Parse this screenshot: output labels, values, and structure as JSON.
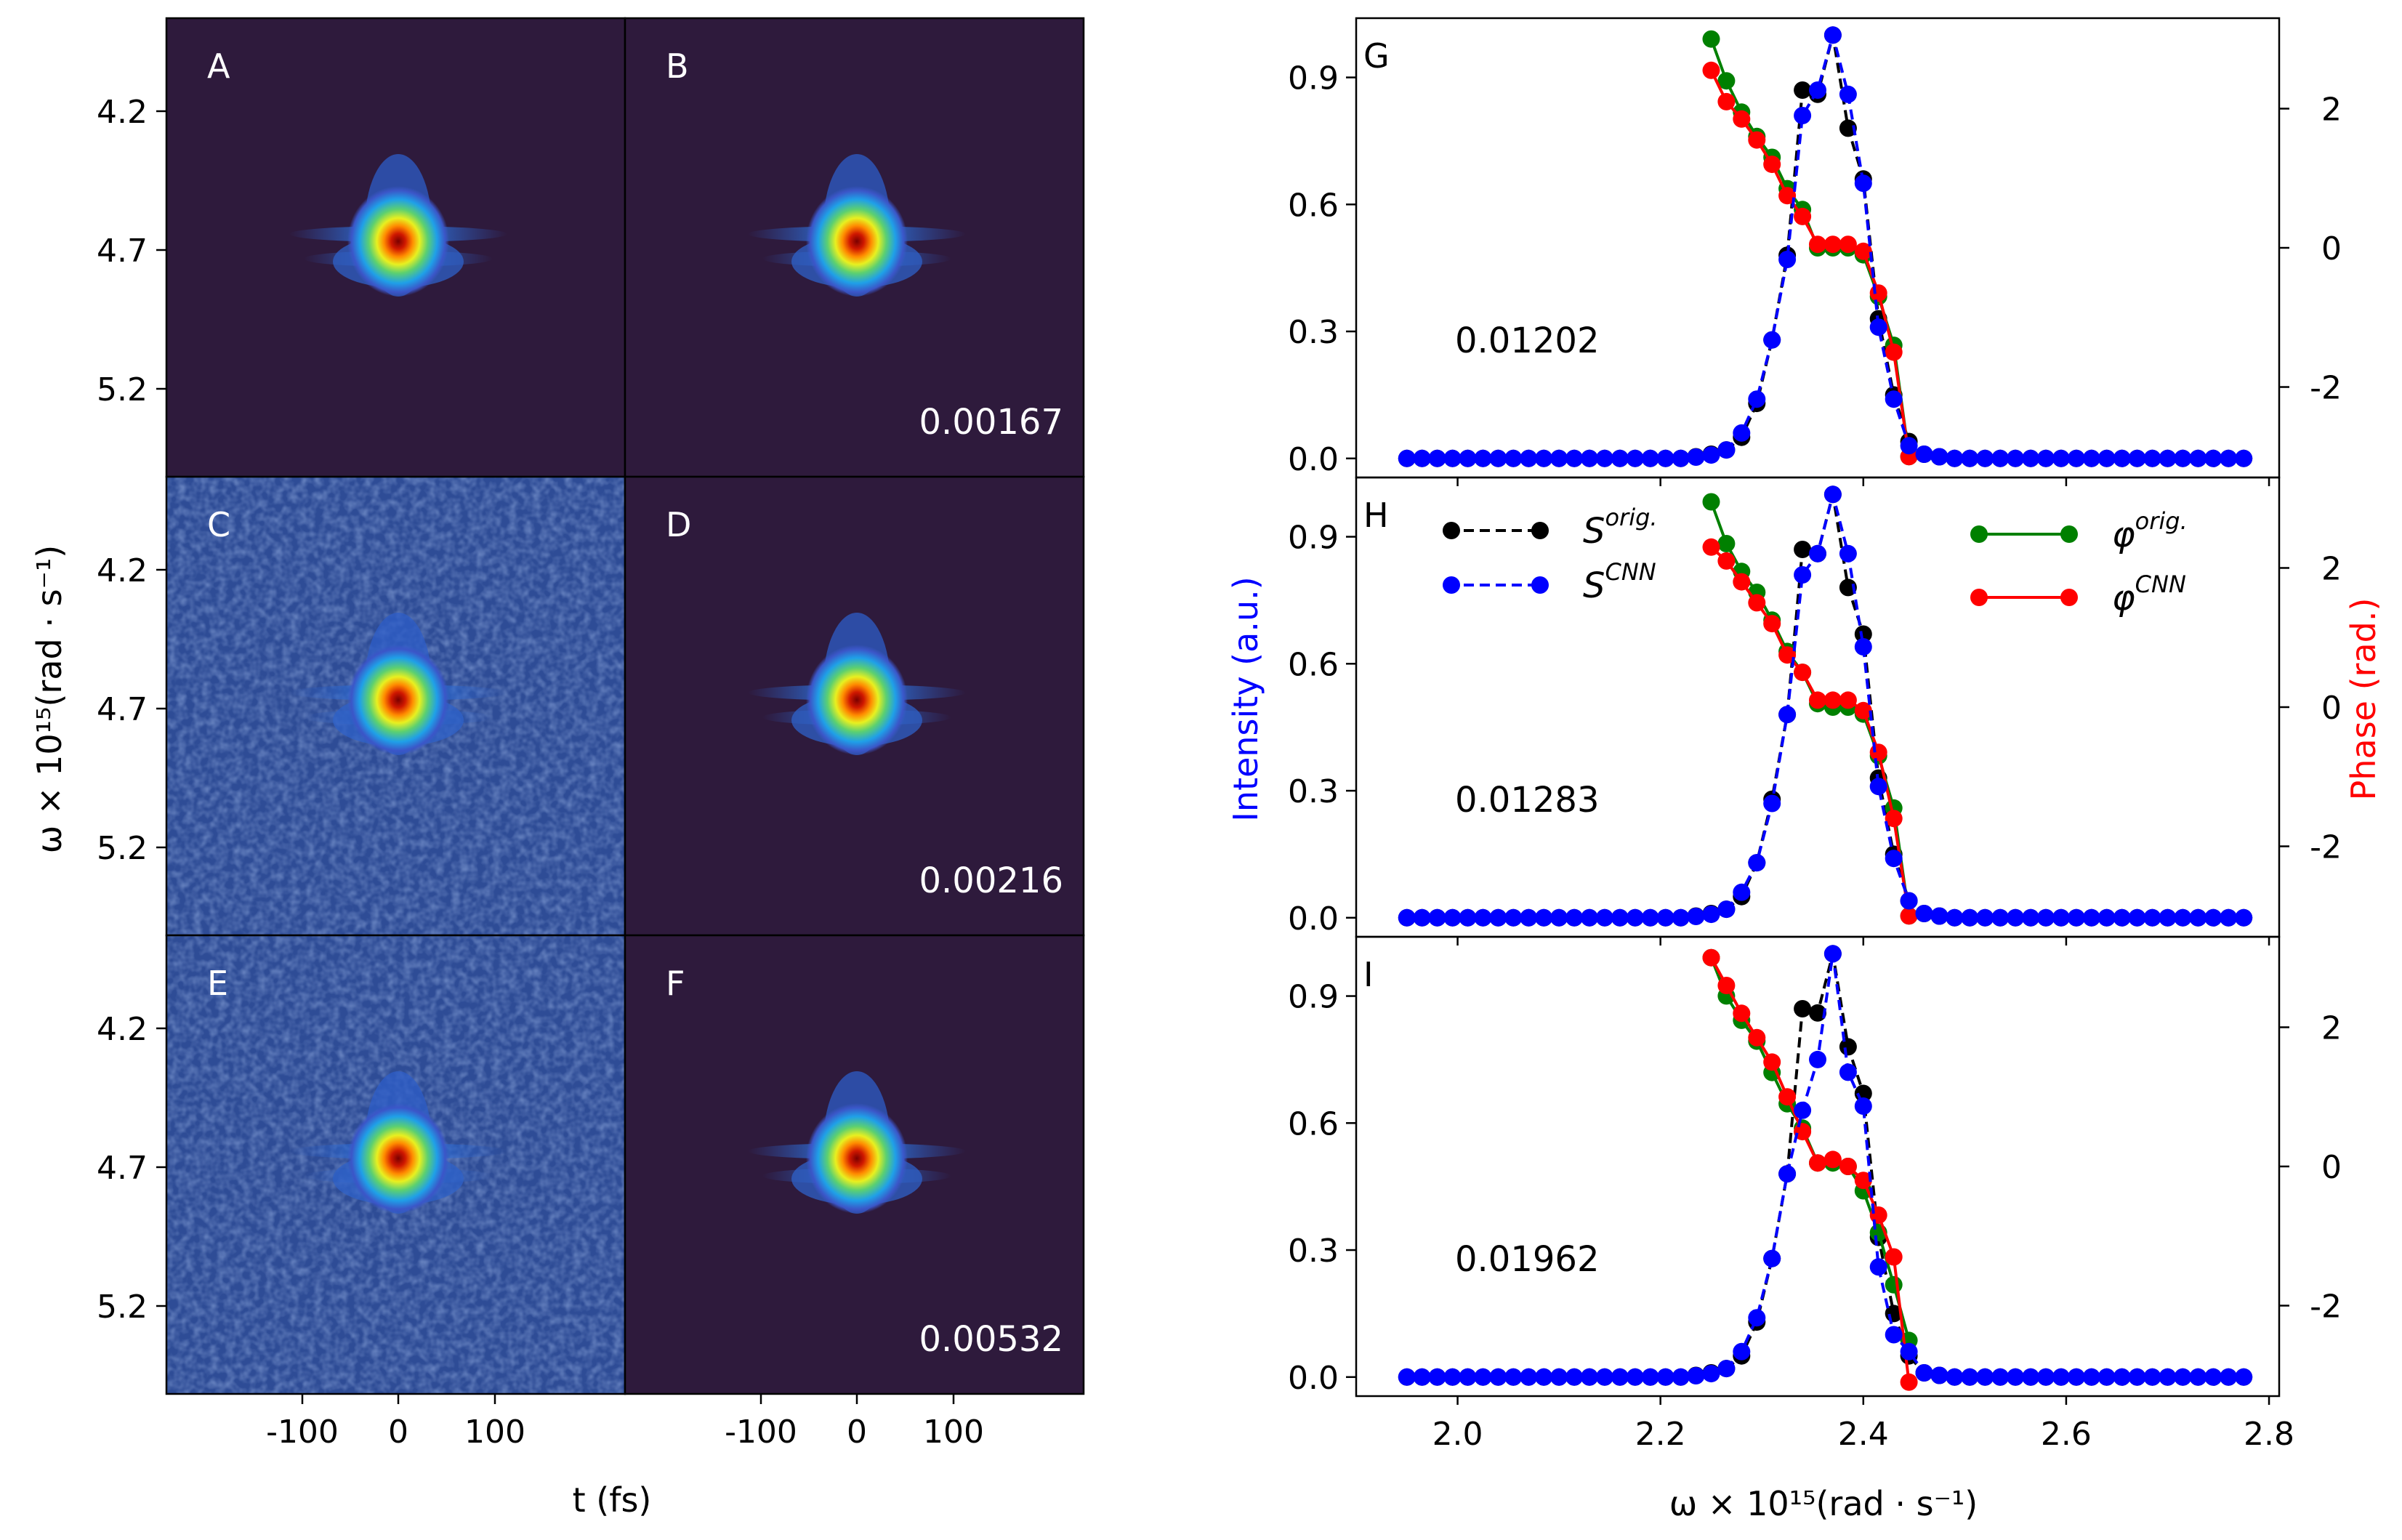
{
  "colors": {
    "intensity_axis": "#0000ff",
    "phase_axis": "#ff0000",
    "s_orig": "#000000",
    "s_cnn": "#0000ff",
    "phi_orig": "#008000",
    "phi_cnn": "#ff0000",
    "heatmap_bg_clean": "#2e1a3c",
    "heatmap_bg_noisy": "#2e4c96"
  },
  "chart_data": [
    {
      "type": "heatmap",
      "panels": [
        {
          "label": "A",
          "noisy": false,
          "value": ""
        },
        {
          "label": "B",
          "noisy": false,
          "value": "0.00167"
        },
        {
          "label": "C",
          "noisy": true,
          "value": ""
        },
        {
          "label": "D",
          "noisy": false,
          "value": "0.00216"
        },
        {
          "label": "E",
          "noisy": true,
          "value": ""
        },
        {
          "label": "F",
          "noisy": false,
          "value": "0.00532"
        }
      ],
      "ylabel": "ω × 10¹⁵(rad · s⁻¹)",
      "xlabel": "t (fs)",
      "yticks": [
        "4.2",
        "4.7",
        "5.2"
      ],
      "xticks": [
        "-100",
        "0",
        "100"
      ]
    },
    {
      "type": "line",
      "x": [
        1.95,
        1.965,
        1.98,
        1.995,
        2.01,
        2.025,
        2.04,
        2.055,
        2.07,
        2.085,
        2.1,
        2.115,
        2.13,
        2.145,
        2.16,
        2.175,
        2.19,
        2.205,
        2.22,
        2.235,
        2.25,
        2.265,
        2.28,
        2.295,
        2.31,
        2.325,
        2.34,
        2.355,
        2.37,
        2.385,
        2.4,
        2.415,
        2.43,
        2.445,
        2.46,
        2.475,
        2.49,
        2.505,
        2.52,
        2.535,
        2.55,
        2.565,
        2.58,
        2.595,
        2.61,
        2.625,
        2.64,
        2.655,
        2.67,
        2.685,
        2.7,
        2.715,
        2.73,
        2.745,
        2.76,
        2.775
      ],
      "phase_x": [
        2.25,
        2.265,
        2.28,
        2.295,
        2.31,
        2.325,
        2.34,
        2.355,
        2.37,
        2.385,
        2.4,
        2.415,
        2.43,
        2.445
      ],
      "panels": [
        {
          "label": "G",
          "value": "0.01202",
          "s_orig": [
            0,
            0,
            0,
            0,
            0,
            0,
            0,
            0,
            0,
            0,
            0,
            0,
            0,
            0,
            0,
            0,
            0,
            0,
            0,
            0.004,
            0.01,
            0.02,
            0.05,
            0.13,
            0.28,
            0.48,
            0.87,
            0.86,
            1.0,
            0.78,
            0.66,
            0.33,
            0.15,
            0.04,
            0.01,
            0.004,
            0,
            0,
            0,
            0,
            0,
            0,
            0,
            0,
            0,
            0,
            0,
            0,
            0,
            0,
            0,
            0,
            0,
            0,
            0,
            0
          ],
          "s_cnn": [
            0,
            0,
            0,
            0,
            0,
            0,
            0,
            0,
            0,
            0,
            0,
            0,
            0,
            0,
            0,
            0,
            0,
            0,
            0,
            0.003,
            0.008,
            0.02,
            0.06,
            0.14,
            0.28,
            0.47,
            0.81,
            0.87,
            1.0,
            0.86,
            0.65,
            0.31,
            0.14,
            0.03,
            0.01,
            0.004,
            0,
            0,
            0,
            0,
            0,
            0,
            0,
            0,
            0,
            0,
            0,
            0,
            0,
            0,
            0,
            0,
            0,
            0,
            0,
            0
          ],
          "phi_orig": [
            3.0,
            2.4,
            1.95,
            1.6,
            1.3,
            0.85,
            0.55,
            0.0,
            0.0,
            0.0,
            -0.1,
            -0.7,
            -1.4,
            -3.0
          ],
          "phi_cnn": [
            2.55,
            2.1,
            1.85,
            1.55,
            1.2,
            0.75,
            0.45,
            0.05,
            0.05,
            0.05,
            -0.05,
            -0.65,
            -1.5,
            -3.0
          ]
        },
        {
          "label": "H",
          "value": "0.01283",
          "s_orig": [
            0,
            0,
            0,
            0,
            0,
            0,
            0,
            0,
            0,
            0,
            0,
            0,
            0,
            0,
            0,
            0,
            0,
            0,
            0,
            0.004,
            0.01,
            0.02,
            0.05,
            0.13,
            0.28,
            0.48,
            0.87,
            0.86,
            1.0,
            0.78,
            0.67,
            0.33,
            0.15,
            0.04,
            0.01,
            0.004,
            0,
            0,
            0,
            0,
            0,
            0,
            0,
            0,
            0,
            0,
            0,
            0,
            0,
            0,
            0,
            0,
            0,
            0,
            0,
            0
          ],
          "s_cnn": [
            0,
            0,
            0,
            0,
            0,
            0,
            0,
            0,
            0,
            0,
            0,
            0,
            0,
            0,
            0,
            0,
            0,
            0,
            0,
            0.003,
            0.008,
            0.02,
            0.06,
            0.13,
            0.27,
            0.48,
            0.81,
            0.86,
            1.0,
            0.86,
            0.64,
            0.31,
            0.14,
            0.04,
            0.01,
            0.004,
            0,
            0,
            0,
            0,
            0,
            0,
            0,
            0,
            0,
            0,
            0,
            0,
            0,
            0,
            0,
            0,
            0,
            0,
            0,
            0
          ],
          "phi_orig": [
            2.95,
            2.35,
            1.95,
            1.65,
            1.25,
            0.8,
            0.5,
            0.05,
            0.0,
            0.0,
            -0.1,
            -0.7,
            -1.45,
            -3.0
          ],
          "phi_cnn": [
            2.3,
            2.1,
            1.8,
            1.5,
            1.2,
            0.75,
            0.5,
            0.1,
            0.1,
            0.1,
            -0.05,
            -0.65,
            -1.6,
            -3.0
          ]
        },
        {
          "label": "I",
          "value": "0.01962",
          "s_orig": [
            0,
            0,
            0,
            0,
            0,
            0,
            0,
            0,
            0,
            0,
            0,
            0,
            0,
            0,
            0,
            0,
            0,
            0,
            0,
            0.004,
            0.01,
            0.02,
            0.05,
            0.13,
            0.28,
            0.48,
            0.87,
            0.86,
            1.0,
            0.78,
            0.67,
            0.33,
            0.15,
            0.05,
            0.01,
            0.004,
            0,
            0,
            0,
            0,
            0,
            0,
            0,
            0,
            0,
            0,
            0,
            0,
            0,
            0,
            0,
            0,
            0,
            0,
            0,
            0
          ],
          "s_cnn": [
            0,
            0,
            0,
            0,
            0,
            0,
            0,
            0,
            0,
            0,
            0,
            0,
            0,
            0,
            0,
            0,
            0,
            0,
            0,
            0.003,
            0.008,
            0.02,
            0.06,
            0.14,
            0.28,
            0.48,
            0.63,
            0.75,
            1.0,
            0.72,
            0.64,
            0.26,
            0.1,
            0.06,
            0.01,
            0.004,
            0,
            0,
            0,
            0,
            0,
            0,
            0,
            0,
            0,
            0,
            0,
            0,
            0,
            0,
            0,
            0,
            0,
            0,
            0,
            0
          ],
          "phi_orig": [
            3.0,
            2.45,
            2.1,
            1.8,
            1.35,
            0.9,
            0.55,
            0.05,
            0.05,
            0.0,
            -0.35,
            -0.95,
            -1.7,
            -2.5
          ],
          "phi_cnn": [
            3.0,
            2.6,
            2.2,
            1.85,
            1.5,
            1.0,
            0.5,
            0.05,
            0.1,
            0.0,
            -0.2,
            -0.7,
            -1.3,
            -3.1
          ]
        }
      ],
      "xlabel": "ω × 10¹⁵(rad · s⁻¹)",
      "ylabel_left": "Intensity (a.u.)",
      "ylabel_right": "Phase (rad.)",
      "xlim": [
        1.9,
        2.81
      ],
      "ylim": [
        -0.045,
        1.04
      ],
      "ylim_right": [
        -3.3,
        3.3
      ],
      "xticks": [
        "2.0",
        "2.2",
        "2.4",
        "2.6",
        "2.8"
      ],
      "yticks": [
        "0.0",
        "0.3",
        "0.6",
        "0.9"
      ],
      "yticks_right": [
        "-2",
        "0",
        "2"
      ],
      "legend": {
        "s_orig": "S",
        "s_orig_sup": "orig.",
        "s_cnn": "S",
        "s_cnn_sup": "CNN",
        "phi_orig": "φ",
        "phi_orig_sup": "orig.",
        "phi_cnn": "φ",
        "phi_cnn_sup": "CNN"
      }
    }
  ]
}
